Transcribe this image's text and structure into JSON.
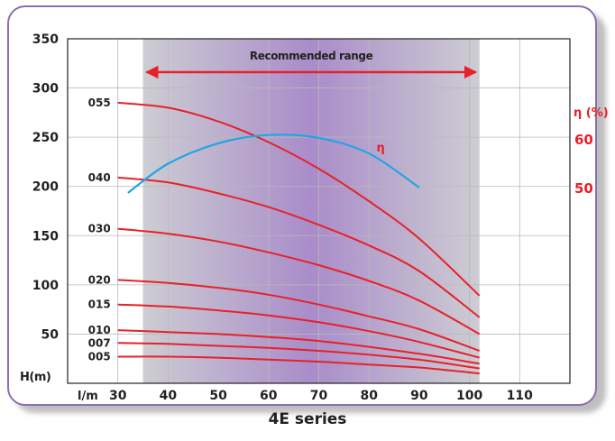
{
  "caption": "4E series",
  "colors": {
    "curve": "#e8202a",
    "efficiency": "#1fa6e4",
    "axis_label": "#e8202a",
    "range_shade": "#a98cc9",
    "frame": "#8a6fb3"
  },
  "chart_data": {
    "type": "line",
    "xlabel": "l/m",
    "ylabel": "H(m)",
    "xlim": [
      20,
      120
    ],
    "ylim": [
      0,
      350
    ],
    "x_ticks": [
      30,
      40,
      50,
      60,
      70,
      80,
      90,
      100,
      110
    ],
    "y_ticks": [
      50,
      100,
      150,
      200,
      250,
      300,
      350
    ],
    "grid": true,
    "recommended_range": {
      "label": "Recommended range",
      "from": 35,
      "to": 102
    },
    "series": [
      {
        "name": "055",
        "x": [
          30,
          40,
          50,
          60,
          70,
          80,
          90,
          102
        ],
        "y": [
          285,
          280,
          266,
          245,
          218,
          185,
          147,
          89
        ]
      },
      {
        "name": "040",
        "x": [
          30,
          40,
          50,
          60,
          70,
          80,
          90,
          102
        ],
        "y": [
          209,
          204,
          193,
          179,
          161,
          140,
          114,
          67
        ]
      },
      {
        "name": "030",
        "x": [
          30,
          40,
          50,
          60,
          70,
          80,
          90,
          102
        ],
        "y": [
          157,
          152,
          144,
          133,
          120,
          104,
          84,
          50
        ]
      },
      {
        "name": "020",
        "x": [
          30,
          40,
          50,
          60,
          70,
          80,
          90,
          102
        ],
        "y": [
          105,
          102,
          97,
          90,
          80,
          68,
          55,
          33
        ]
      },
      {
        "name": "015",
        "x": [
          30,
          40,
          50,
          60,
          70,
          80,
          90,
          102
        ],
        "y": [
          80,
          78,
          74,
          69,
          62,
          53,
          42,
          26
        ]
      },
      {
        "name": "010",
        "x": [
          30,
          40,
          50,
          60,
          70,
          80,
          90,
          102
        ],
        "y": [
          54,
          52,
          50,
          47,
          43,
          37,
          30,
          20
        ]
      },
      {
        "name": "007",
        "x": [
          30,
          40,
          50,
          60,
          70,
          80,
          90,
          102
        ],
        "y": [
          41,
          40,
          38,
          36,
          33,
          29,
          24,
          15
        ]
      },
      {
        "name": "005",
        "x": [
          30,
          40,
          50,
          60,
          70,
          80,
          90,
          102
        ],
        "y": [
          27,
          27,
          26,
          24,
          22,
          19,
          16,
          10
        ]
      }
    ],
    "efficiency": {
      "name": "η",
      "axis_label": "η (%)",
      "ticks": [
        50,
        60
      ],
      "x": [
        32,
        40,
        50,
        60,
        70,
        80,
        90
      ],
      "y": [
        48.9,
        54.9,
        59.1,
        60.8,
        60.2,
        57.0,
        50.0
      ]
    }
  }
}
